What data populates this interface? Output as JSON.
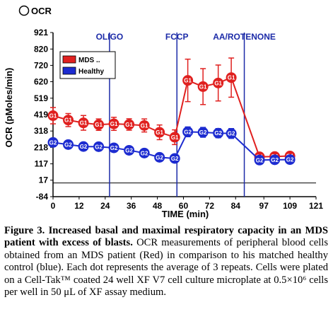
{
  "chart_data": {
    "type": "line",
    "title": "OCR",
    "xlabel": "TIME (min)",
    "ylabel": "OCR (pMoles/min)",
    "x_ticks": [
      "0",
      "12",
      "24",
      "36",
      "48",
      "60",
      "72",
      "84",
      "97",
      "109",
      "121"
    ],
    "y_ticks": [
      "-84",
      "17",
      "117",
      "218",
      "318",
      "419",
      "519",
      "620",
      "720",
      "820",
      "921"
    ],
    "xlim": [
      0,
      121
    ],
    "ylim": [
      -84,
      921
    ],
    "grid": false,
    "legend": "top-left",
    "events": [
      {
        "label": "OLIGO",
        "x": 26
      },
      {
        "label": "FCCP",
        "x": 57
      },
      {
        "label": "AA/ROTENONE",
        "x": 88
      }
    ],
    "series": [
      {
        "name": "MDS ..",
        "marker_label": "G1",
        "color": "#e0201f",
        "x": [
          0,
          7,
          14,
          21,
          28,
          35,
          42,
          49,
          56,
          62,
          69,
          76,
          82,
          95,
          102,
          109
        ],
        "y": [
          412,
          385,
          368,
          357,
          362,
          358,
          352,
          310,
          280,
          628,
          590,
          612,
          645,
          160,
          162,
          165
        ],
        "error": [
          50,
          40,
          45,
          35,
          40,
          35,
          40,
          45,
          45,
          130,
          110,
          110,
          120,
          20,
          20,
          20
        ]
      },
      {
        "name": "Healthy",
        "marker_label": "G2",
        "color": "#1c2bd0",
        "x": [
          0,
          7,
          14,
          21,
          28,
          35,
          42,
          49,
          56,
          62,
          69,
          76,
          82,
          95,
          102,
          109
        ],
        "y": [
          248,
          235,
          223,
          222,
          215,
          200,
          183,
          157,
          150,
          313,
          310,
          305,
          303,
          140,
          142,
          143
        ],
        "error": [
          25,
          20,
          20,
          18,
          15,
          15,
          15,
          15,
          15,
          30,
          30,
          28,
          30,
          12,
          12,
          12
        ]
      }
    ]
  },
  "caption": {
    "bold": "Figure 3. Increased basal and maximal respiratory capacity in an MDS patient with excess of blasts.",
    "text": " OCR measurements of peripheral blood cells obtained from an MDS patient (Red) in comparison to his matched healthy control (blue). Each dot represents the average of 3 repeats. Cells were plated on a Cell-Tak™ coated 24 well XF V7 cell culture microplate at 0.5×10⁶ cells per well in 50 μL of XF assay medium."
  }
}
